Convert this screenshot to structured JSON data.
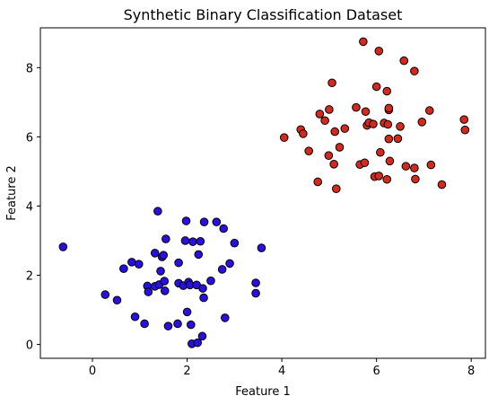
{
  "chart_data": {
    "type": "scatter",
    "title": "Synthetic Binary Classification Dataset",
    "xlabel": "Feature 1",
    "ylabel": "Feature 2",
    "xlim": [
      -1.1,
      8.3
    ],
    "ylim": [
      -0.4,
      9.15
    ],
    "xticks": [
      0,
      2,
      4,
      6,
      8
    ],
    "yticks": [
      0,
      2,
      4,
      6,
      8
    ],
    "grid": false,
    "legend": "none",
    "series": [
      {
        "color": "#2a10e0",
        "points": [
          [
            -0.62,
            2.82
          ],
          [
            0.27,
            1.44
          ],
          [
            0.52,
            1.28
          ],
          [
            0.66,
            2.19
          ],
          [
            0.83,
            2.38
          ],
          [
            0.9,
            0.8
          ],
          [
            0.98,
            2.32
          ],
          [
            1.1,
            0.6
          ],
          [
            1.16,
            1.69
          ],
          [
            1.18,
            1.52
          ],
          [
            1.32,
            2.64
          ],
          [
            1.32,
            1.68
          ],
          [
            1.38,
            3.85
          ],
          [
            1.41,
            1.73
          ],
          [
            1.44,
            2.12
          ],
          [
            1.47,
            2.53
          ],
          [
            1.5,
            2.58
          ],
          [
            1.52,
            1.83
          ],
          [
            1.53,
            1.55
          ],
          [
            1.55,
            3.05
          ],
          [
            1.6,
            0.53
          ],
          [
            1.8,
            0.6
          ],
          [
            1.82,
            2.36
          ],
          [
            1.82,
            1.77
          ],
          [
            1.92,
            1.7
          ],
          [
            1.96,
            3.0
          ],
          [
            1.98,
            3.57
          ],
          [
            2.0,
            0.94
          ],
          [
            2.03,
            1.8
          ],
          [
            2.06,
            1.72
          ],
          [
            2.08,
            0.57
          ],
          [
            2.1,
            0.02
          ],
          [
            2.12,
            2.97
          ],
          [
            2.2,
            1.72
          ],
          [
            2.22,
            0.05
          ],
          [
            2.24,
            2.6
          ],
          [
            2.28,
            2.98
          ],
          [
            2.32,
            0.24
          ],
          [
            2.33,
            1.62
          ],
          [
            2.35,
            1.35
          ],
          [
            2.36,
            3.54
          ],
          [
            2.5,
            1.84
          ],
          [
            2.62,
            3.54
          ],
          [
            2.74,
            2.17
          ],
          [
            2.77,
            3.35
          ],
          [
            2.8,
            0.77
          ],
          [
            2.9,
            2.34
          ],
          [
            3.0,
            2.93
          ],
          [
            3.45,
            1.78
          ],
          [
            3.45,
            1.48
          ],
          [
            3.57,
            2.79
          ]
        ]
      },
      {
        "color": "#d42a1d",
        "points": [
          [
            4.05,
            5.98
          ],
          [
            4.4,
            6.21
          ],
          [
            4.45,
            6.09
          ],
          [
            4.57,
            5.59
          ],
          [
            4.76,
            4.7
          ],
          [
            4.8,
            6.66
          ],
          [
            4.91,
            6.47
          ],
          [
            4.99,
            5.46
          ],
          [
            5.0,
            6.79
          ],
          [
            5.06,
            7.56
          ],
          [
            5.1,
            5.21
          ],
          [
            5.12,
            6.15
          ],
          [
            5.15,
            4.5
          ],
          [
            5.22,
            5.7
          ],
          [
            5.33,
            6.24
          ],
          [
            5.57,
            6.85
          ],
          [
            5.65,
            5.2
          ],
          [
            5.72,
            8.75
          ],
          [
            5.75,
            5.25
          ],
          [
            5.77,
            6.73
          ],
          [
            5.8,
            6.33
          ],
          [
            5.84,
            6.41
          ],
          [
            5.93,
            6.37
          ],
          [
            5.96,
            4.85
          ],
          [
            6.0,
            7.45
          ],
          [
            6.05,
            8.48
          ],
          [
            6.05,
            4.87
          ],
          [
            6.08,
            5.55
          ],
          [
            6.16,
            6.4
          ],
          [
            6.22,
            4.77
          ],
          [
            6.22,
            7.32
          ],
          [
            6.24,
            6.36
          ],
          [
            6.26,
            6.78
          ],
          [
            6.26,
            6.83
          ],
          [
            6.26,
            5.94
          ],
          [
            6.28,
            5.3
          ],
          [
            6.45,
            5.95
          ],
          [
            6.5,
            6.3
          ],
          [
            6.58,
            8.2
          ],
          [
            6.62,
            5.15
          ],
          [
            6.8,
            7.9
          ],
          [
            6.8,
            5.1
          ],
          [
            6.82,
            4.78
          ],
          [
            6.96,
            6.43
          ],
          [
            7.12,
            6.76
          ],
          [
            7.15,
            5.19
          ],
          [
            7.38,
            4.62
          ],
          [
            7.85,
            6.5
          ],
          [
            7.87,
            6.2
          ]
        ]
      }
    ]
  }
}
